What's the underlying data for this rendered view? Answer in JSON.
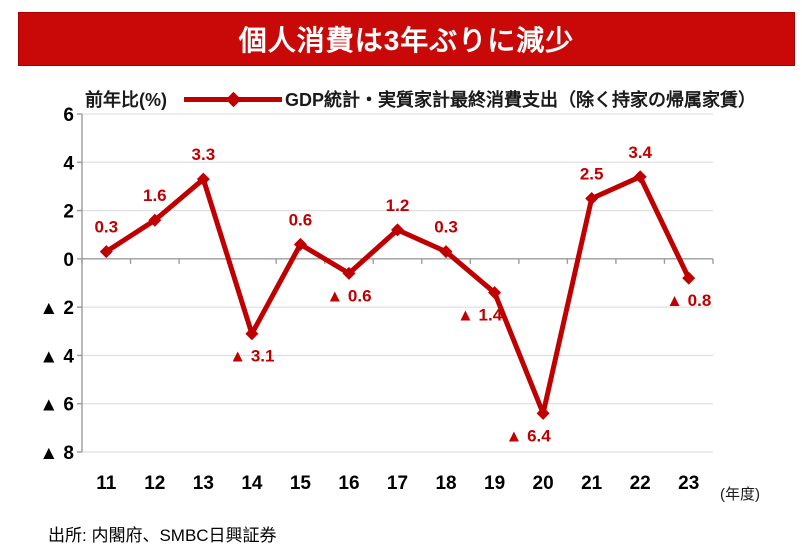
{
  "title": "個人消費は3年ぶりに減少",
  "colors": {
    "banner_bg": "#c90808",
    "banner_border": "#a30000",
    "banner_text": "#ffffff",
    "series": "#c00000",
    "grid": "#d9d9d9",
    "axis": "#9b9b9b",
    "text": "#000000"
  },
  "legend": {
    "axis_unit": "前年比(%)",
    "series_label": "GDP統計・実質家計最終消費支出（除く持家の帰属家賃）"
  },
  "footer": {
    "source": "出所: 内閣府、SMBC日興証券"
  },
  "chart_data": {
    "type": "line",
    "x": [
      "11",
      "12",
      "13",
      "14",
      "15",
      "16",
      "17",
      "18",
      "19",
      "20",
      "21",
      "22",
      "23"
    ],
    "xlabel": "(年度)",
    "ylabel": "前年比(%)",
    "series": [
      {
        "name": "GDP統計・実質家計最終消費支出（除く持家の帰属家賃）",
        "values": [
          0.3,
          1.6,
          3.3,
          -3.1,
          0.6,
          -0.6,
          1.2,
          0.3,
          -1.4,
          -6.4,
          2.5,
          3.4,
          -0.8
        ]
      }
    ],
    "data_labels": [
      "0.3",
      "1.6",
      "3.3",
      "▲ 3.1",
      "0.6",
      "▲ 0.6",
      "1.2",
      "0.3",
      "▲ 1.4",
      "▲ 6.4",
      "2.5",
      "3.4",
      "▲ 0.8"
    ],
    "label_positions": [
      "above",
      "above",
      "above",
      "below",
      "above",
      "below",
      "above",
      "above",
      "below-left",
      "below-left",
      "above",
      "above",
      "below"
    ],
    "ylim": [
      -8,
      6
    ],
    "ytick_step": 2,
    "negative_prefix": "▲",
    "grid": true,
    "legend_position": "top",
    "marker": "diamond"
  }
}
